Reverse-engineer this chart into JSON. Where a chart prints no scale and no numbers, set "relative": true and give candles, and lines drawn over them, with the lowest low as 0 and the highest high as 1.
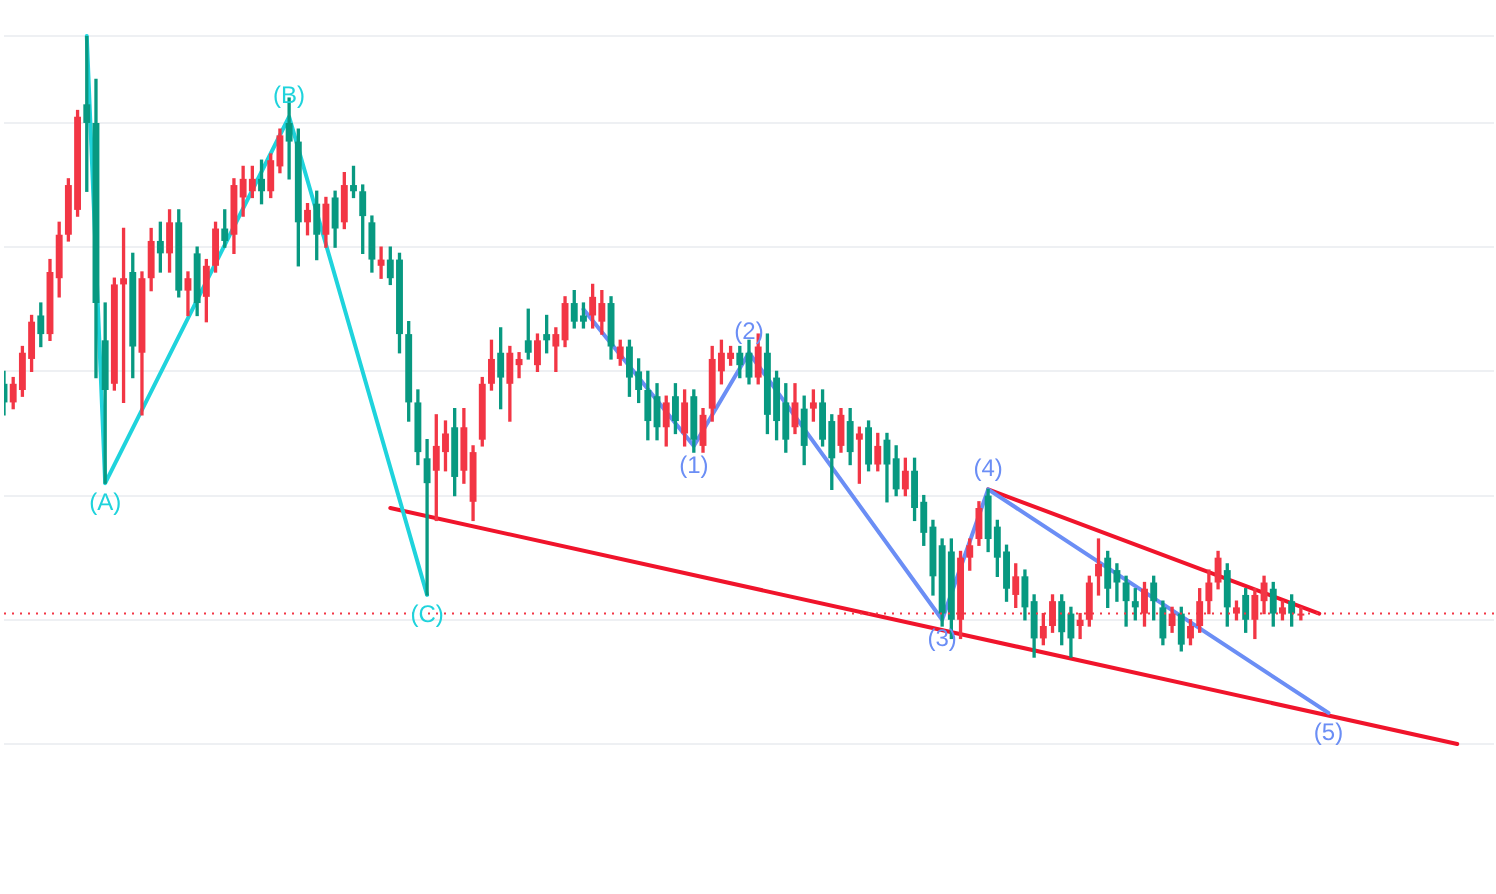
{
  "chart_data": {
    "type": "candlestick",
    "relative": true,
    "grid": "y",
    "tick_labels": false,
    "legend": false,
    "categories": [
      null,
      null,
      null,
      null,
      null,
      null,
      null,
      null,
      null,
      null,
      null,
      null,
      null,
      null,
      null,
      null,
      null,
      null,
      null,
      null,
      null,
      null,
      null,
      null,
      null,
      null,
      null,
      null,
      null,
      null,
      null,
      null,
      null,
      null,
      null,
      null,
      null,
      null,
      null,
      null,
      null,
      null,
      null,
      null,
      null,
      null,
      null,
      null,
      null,
      null,
      null,
      null,
      null,
      null,
      null,
      null,
      null,
      null,
      null,
      null,
      null,
      null,
      null,
      null,
      null,
      null,
      null,
      null,
      null,
      null,
      null,
      null,
      null,
      null,
      null,
      null,
      null,
      null,
      null,
      null,
      null,
      null,
      null,
      null,
      null,
      null,
      null,
      null,
      null,
      null,
      null,
      null,
      null,
      null,
      null,
      null,
      null,
      null,
      null,
      null,
      null,
      null,
      null,
      null,
      null,
      null,
      null,
      null,
      null,
      null,
      null,
      null,
      null,
      null,
      null,
      null,
      null,
      null,
      null,
      null,
      null,
      null,
      null,
      null,
      null,
      null,
      null,
      null,
      null,
      null,
      null,
      null,
      null,
      null,
      null,
      null,
      null,
      null,
      null,
      null,
      null,
      null,
      null,
      null,
      null,
      null,
      null,
      null,
      null,
      null,
      null,
      null,
      null,
      null,
      null,
      null,
      null,
      null,
      null,
      null,
      null,
      null,
      null
    ],
    "ohlc": [
      [
        0.44,
        0.46,
        0.39,
        0.41
      ],
      [
        0.41,
        0.45,
        0.4,
        0.44
      ],
      [
        0.43,
        0.5,
        0.42,
        0.49
      ],
      [
        0.48,
        0.55,
        0.46,
        0.54
      ],
      [
        0.55,
        0.57,
        0.5,
        0.52
      ],
      [
        0.52,
        0.64,
        0.51,
        0.62
      ],
      [
        0.61,
        0.7,
        0.58,
        0.68
      ],
      [
        0.68,
        0.77,
        0.67,
        0.76
      ],
      [
        0.72,
        0.88,
        0.71,
        0.87
      ],
      [
        0.89,
        1.0,
        0.75,
        0.86
      ],
      [
        0.86,
        0.93,
        0.45,
        0.57
      ],
      [
        0.51,
        0.57,
        0.28,
        0.43
      ],
      [
        0.44,
        0.61,
        0.43,
        0.6
      ],
      [
        0.6,
        0.69,
        0.41,
        0.61
      ],
      [
        0.62,
        0.65,
        0.45,
        0.5
      ],
      [
        0.49,
        0.62,
        0.39,
        0.61
      ],
      [
        0.61,
        0.69,
        0.59,
        0.67
      ],
      [
        0.67,
        0.7,
        0.62,
        0.65
      ],
      [
        0.65,
        0.72,
        0.62,
        0.7
      ],
      [
        0.7,
        0.72,
        0.58,
        0.59
      ],
      [
        0.59,
        0.62,
        0.55,
        0.61
      ],
      [
        0.65,
        0.66,
        0.55,
        0.57
      ],
      [
        0.58,
        0.64,
        0.54,
        0.63
      ],
      [
        0.63,
        0.7,
        0.62,
        0.69
      ],
      [
        0.69,
        0.72,
        0.66,
        0.67
      ],
      [
        0.68,
        0.77,
        0.65,
        0.76
      ],
      [
        0.74,
        0.79,
        0.71,
        0.77
      ],
      [
        0.75,
        0.79,
        0.74,
        0.77
      ],
      [
        0.77,
        0.8,
        0.73,
        0.75
      ],
      [
        0.75,
        0.81,
        0.74,
        0.8
      ],
      [
        0.79,
        0.85,
        0.78,
        0.84
      ],
      [
        0.86,
        0.9,
        0.77,
        0.83
      ],
      [
        0.83,
        0.85,
        0.63,
        0.7
      ],
      [
        0.7,
        0.73,
        0.68,
        0.72
      ],
      [
        0.73,
        0.75,
        0.64,
        0.68
      ],
      [
        0.68,
        0.74,
        0.66,
        0.73
      ],
      [
        0.74,
        0.75,
        0.66,
        0.69
      ],
      [
        0.7,
        0.78,
        0.69,
        0.76
      ],
      [
        0.76,
        0.79,
        0.74,
        0.75
      ],
      [
        0.75,
        0.76,
        0.65,
        0.71
      ],
      [
        0.7,
        0.71,
        0.62,
        0.64
      ],
      [
        0.63,
        0.66,
        0.61,
        0.64
      ],
      [
        0.64,
        0.66,
        0.6,
        0.61
      ],
      [
        0.64,
        0.65,
        0.49,
        0.52
      ],
      [
        0.52,
        0.54,
        0.38,
        0.41
      ],
      [
        0.41,
        0.43,
        0.31,
        0.33
      ],
      [
        0.32,
        0.35,
        0.1,
        0.28
      ],
      [
        0.3,
        0.39,
        0.22,
        0.34
      ],
      [
        0.33,
        0.38,
        0.3,
        0.36
      ],
      [
        0.37,
        0.4,
        0.26,
        0.29
      ],
      [
        0.3,
        0.4,
        0.28,
        0.37
      ],
      [
        0.25,
        0.34,
        0.22,
        0.33
      ],
      [
        0.35,
        0.45,
        0.34,
        0.44
      ],
      [
        0.44,
        0.51,
        0.43,
        0.48
      ],
      [
        0.49,
        0.53,
        0.4,
        0.45
      ],
      [
        0.44,
        0.5,
        0.38,
        0.49
      ],
      [
        0.47,
        0.49,
        0.45,
        0.48
      ],
      [
        0.51,
        0.56,
        0.48,
        0.49
      ],
      [
        0.47,
        0.52,
        0.46,
        0.51
      ],
      [
        0.52,
        0.55,
        0.49,
        0.51
      ],
      [
        0.5,
        0.53,
        0.46,
        0.52
      ],
      [
        0.51,
        0.58,
        0.5,
        0.57
      ],
      [
        0.57,
        0.59,
        0.53,
        0.54
      ],
      [
        0.55,
        0.57,
        0.53,
        0.54
      ],
      [
        0.55,
        0.6,
        0.53,
        0.58
      ],
      [
        0.54,
        0.59,
        0.52,
        0.57
      ],
      [
        0.57,
        0.58,
        0.48,
        0.5
      ],
      [
        0.48,
        0.51,
        0.47,
        0.5
      ],
      [
        0.5,
        0.51,
        0.42,
        0.45
      ],
      [
        0.46,
        0.48,
        0.41,
        0.43
      ],
      [
        0.43,
        0.46,
        0.35,
        0.38
      ],
      [
        0.42,
        0.44,
        0.35,
        0.37
      ],
      [
        0.37,
        0.42,
        0.34,
        0.41
      ],
      [
        0.42,
        0.44,
        0.36,
        0.38
      ],
      [
        0.36,
        0.43,
        0.34,
        0.41
      ],
      [
        0.42,
        0.43,
        0.33,
        0.35
      ],
      [
        0.34,
        0.4,
        0.33,
        0.39
      ],
      [
        0.4,
        0.5,
        0.38,
        0.48
      ],
      [
        0.46,
        0.51,
        0.44,
        0.49
      ],
      [
        0.48,
        0.5,
        0.47,
        0.49
      ],
      [
        0.49,
        0.5,
        0.45,
        0.47
      ],
      [
        0.49,
        0.51,
        0.44,
        0.45
      ],
      [
        0.45,
        0.52,
        0.44,
        0.5
      ],
      [
        0.49,
        0.52,
        0.36,
        0.39
      ],
      [
        0.45,
        0.46,
        0.35,
        0.38
      ],
      [
        0.41,
        0.44,
        0.33,
        0.35
      ],
      [
        0.37,
        0.44,
        0.36,
        0.41
      ],
      [
        0.4,
        0.42,
        0.31,
        0.34
      ],
      [
        0.4,
        0.43,
        0.38,
        0.41
      ],
      [
        0.41,
        0.43,
        0.34,
        0.35
      ],
      [
        0.38,
        0.39,
        0.27,
        0.32
      ],
      [
        0.34,
        0.4,
        0.33,
        0.39
      ],
      [
        0.38,
        0.4,
        0.31,
        0.33
      ],
      [
        0.35,
        0.37,
        0.28,
        0.36
      ],
      [
        0.37,
        0.38,
        0.3,
        0.31
      ],
      [
        0.31,
        0.36,
        0.3,
        0.34
      ],
      [
        0.35,
        0.36,
        0.25,
        0.31
      ],
      [
        0.32,
        0.34,
        0.26,
        0.27
      ],
      [
        0.27,
        0.32,
        0.26,
        0.3
      ],
      [
        0.3,
        0.32,
        0.22,
        0.24
      ],
      [
        0.25,
        0.26,
        0.18,
        0.2
      ],
      [
        0.21,
        0.22,
        0.1,
        0.13
      ],
      [
        0.18,
        0.19,
        0.05,
        0.07
      ],
      [
        0.17,
        0.19,
        0.03,
        0.06
      ],
      [
        0.06,
        0.17,
        0.03,
        0.16
      ],
      [
        0.16,
        0.19,
        0.14,
        0.18
      ],
      [
        0.19,
        0.25,
        0.18,
        0.24
      ],
      [
        0.26,
        0.27,
        0.17,
        0.19
      ],
      [
        0.21,
        0.22,
        0.13,
        0.16
      ],
      [
        0.17,
        0.18,
        0.09,
        0.11
      ],
      [
        0.1,
        0.15,
        0.08,
        0.13
      ],
      [
        0.13,
        0.14,
        0.06,
        0.08
      ],
      [
        0.09,
        0.1,
        0.0,
        0.03
      ],
      [
        0.03,
        0.07,
        0.02,
        0.05
      ],
      [
        0.05,
        0.1,
        0.04,
        0.09
      ],
      [
        0.09,
        0.1,
        0.02,
        0.04
      ],
      [
        0.07,
        0.08,
        0.0,
        0.03
      ],
      [
        0.05,
        0.07,
        0.03,
        0.06
      ],
      [
        0.06,
        0.13,
        0.05,
        0.12
      ],
      [
        0.13,
        0.19,
        0.1,
        0.15
      ],
      [
        0.16,
        0.17,
        0.08,
        0.11
      ],
      [
        0.14,
        0.15,
        0.09,
        0.12
      ],
      [
        0.12,
        0.13,
        0.05,
        0.09
      ],
      [
        0.09,
        0.11,
        0.06,
        0.08
      ],
      [
        0.07,
        0.12,
        0.05,
        0.11
      ],
      [
        0.12,
        0.13,
        0.06,
        0.09
      ],
      [
        0.08,
        0.09,
        0.02,
        0.03
      ],
      [
        0.05,
        0.08,
        0.04,
        0.07
      ],
      [
        0.07,
        0.08,
        0.01,
        0.02
      ],
      [
        0.03,
        0.06,
        0.02,
        0.05
      ],
      [
        0.05,
        0.11,
        0.04,
        0.09
      ],
      [
        0.09,
        0.14,
        0.07,
        0.12
      ],
      [
        0.12,
        0.17,
        0.11,
        0.16
      ],
      [
        0.14,
        0.15,
        0.05,
        0.08
      ],
      [
        0.07,
        0.09,
        0.06,
        0.08
      ],
      [
        0.1,
        0.11,
        0.04,
        0.06
      ],
      [
        0.06,
        0.11,
        0.03,
        0.1
      ],
      [
        0.09,
        0.13,
        0.07,
        0.12
      ],
      [
        0.11,
        0.12,
        0.05,
        0.07
      ],
      [
        0.07,
        0.09,
        0.06,
        0.08
      ],
      [
        0.09,
        0.1,
        0.05,
        0.07
      ],
      [
        0.07,
        0.08,
        0.06,
        0.07
      ],
      null,
      null,
      null,
      null,
      null,
      null,
      null,
      null,
      null,
      null,
      null,
      null,
      null,
      null,
      null,
      null,
      null,
      null,
      null,
      null,
      null
    ],
    "colors": [
      "#089981",
      "#f23645",
      "#f23645",
      "#f23645",
      "#089981",
      "#f23645",
      "#f23645",
      "#f23645",
      "#f23645",
      "#089981",
      "#089981",
      "#089981",
      "#f23645",
      "#f23645",
      "#089981",
      "#f23645",
      "#f23645",
      "#089981",
      "#f23645",
      "#089981",
      "#f23645",
      "#089981",
      "#f23645",
      "#f23645",
      "#089981",
      "#f23645",
      "#f23645",
      "#f23645",
      "#089981",
      "#f23645",
      "#f23645",
      "#089981",
      "#089981",
      "#f23645",
      "#089981",
      "#f23645",
      "#089981",
      "#f23645",
      "#089981",
      "#089981",
      "#089981",
      "#f23645",
      "#089981",
      "#089981",
      "#089981",
      "#089981",
      "#089981",
      "#f23645",
      "#f23645",
      "#089981",
      "#f23645",
      "#f23645",
      "#f23645",
      "#f23645",
      "#089981",
      "#f23645",
      "#f23645",
      "#089981",
      "#f23645",
      "#089981",
      "#f23645",
      "#f23645",
      "#089981",
      "#089981",
      "#f23645",
      "#f23645",
      "#089981",
      "#f23645",
      "#089981",
      "#089981",
      "#089981",
      "#089981",
      "#f23645",
      "#089981",
      "#f23645",
      "#089981",
      "#f23645",
      "#f23645",
      "#f23645",
      "#f23645",
      "#089981",
      "#089981",
      "#f23645",
      "#089981",
      "#089981",
      "#089981",
      "#f23645",
      "#089981",
      "#f23645",
      "#089981",
      "#089981",
      "#f23645",
      "#089981",
      "#f23645",
      "#089981",
      "#f23645",
      "#089981",
      "#089981",
      "#f23645",
      "#089981",
      "#089981",
      "#089981",
      "#089981",
      "#089981",
      "#f23645",
      "#f23645",
      "#f23645",
      "#089981",
      "#089981",
      "#089981",
      "#f23645",
      "#089981",
      "#089981",
      "#f23645",
      "#f23645",
      "#089981",
      "#089981",
      "#f23645",
      "#f23645",
      "#f23645",
      "#089981",
      "#089981",
      "#089981",
      "#089981",
      "#f23645",
      "#089981",
      "#089981",
      "#f23645",
      "#089981",
      "#f23645",
      "#f23645",
      "#f23645",
      "#f23645",
      "#089981",
      "#f23645",
      "#089981",
      "#f23645",
      "#f23645",
      "#089981",
      "#f23645",
      "#089981",
      "#f23645",
      null,
      null,
      null,
      null,
      null,
      null,
      null,
      null,
      null,
      null,
      null,
      null,
      null,
      null,
      null,
      null,
      null,
      null,
      null,
      null,
      null
    ],
    "series": [
      {
        "type": "line",
        "color": "#1fd3dc",
        "values": [
          null,
          null,
          null,
          null,
          null,
          null,
          null,
          null,
          null,
          1.0,
          null,
          0.28,
          null,
          null,
          null,
          null,
          null,
          null,
          null,
          null,
          null,
          null,
          null,
          null,
          null,
          null,
          null,
          null,
          null,
          null,
          null,
          0.87,
          null,
          null,
          null,
          null,
          null,
          null,
          null,
          null,
          null,
          null,
          null,
          null,
          null,
          null,
          0.1,
          null,
          null,
          null,
          null,
          null,
          null,
          null,
          null,
          null,
          null,
          null,
          null,
          null,
          null,
          null,
          null,
          null,
          null,
          null,
          null,
          null,
          null,
          null,
          null,
          null,
          null,
          null,
          null,
          null,
          null,
          null,
          null,
          null,
          null,
          null,
          null,
          null,
          null,
          null,
          null,
          null,
          null,
          null,
          null,
          null,
          null,
          null,
          null,
          null,
          null,
          null,
          null,
          null,
          null,
          null,
          null,
          null,
          null,
          null,
          null,
          null,
          null,
          null,
          null,
          null,
          null,
          null,
          null,
          null,
          null,
          null,
          null,
          null,
          null,
          null,
          null,
          null,
          null,
          null,
          null,
          null,
          null,
          null,
          null,
          null,
          null,
          null,
          null,
          null,
          null,
          null,
          null,
          null,
          null,
          null,
          null,
          null,
          null,
          null,
          null,
          null,
          null,
          null,
          null,
          null,
          null,
          null,
          null,
          null,
          null,
          null,
          null,
          null,
          null,
          null,
          null
        ]
      },
      {
        "type": "line",
        "color": "#6b8ef5",
        "values": [
          null,
          null,
          null,
          null,
          null,
          null,
          null,
          null,
          null,
          null,
          null,
          null,
          null,
          null,
          null,
          null,
          null,
          null,
          null,
          null,
          null,
          null,
          null,
          null,
          null,
          null,
          null,
          null,
          null,
          null,
          null,
          null,
          null,
          null,
          null,
          null,
          null,
          null,
          null,
          null,
          null,
          null,
          null,
          null,
          null,
          null,
          null,
          null,
          null,
          null,
          null,
          null,
          null,
          null,
          null,
          null,
          null,
          null,
          null,
          null,
          null,
          null,
          null,
          0.56,
          null,
          null,
          null,
          null,
          null,
          null,
          null,
          null,
          null,
          null,
          null,
          0.34,
          null,
          null,
          null,
          null,
          null,
          0.49,
          null,
          null,
          null,
          null,
          null,
          null,
          null,
          null,
          null,
          null,
          null,
          null,
          null,
          null,
          null,
          null,
          null,
          null,
          null,
          null,
          0.06,
          null,
          null,
          null,
          null,
          0.27,
          null,
          null,
          null,
          null,
          null,
          null,
          null,
          null,
          null,
          null,
          null,
          null,
          null,
          null,
          null,
          null,
          null,
          null,
          null,
          null,
          null,
          null,
          null,
          null,
          null,
          null,
          null,
          null,
          null,
          null,
          null,
          null,
          null,
          null,
          null,
          null,
          -0.09,
          null,
          null,
          null,
          null,
          null,
          null,
          null,
          null,
          null,
          null,
          null,
          null,
          null,
          null,
          null,
          null,
          null,
          null
        ]
      },
      {
        "type": "line",
        "color": "#f0142b",
        "values": [
          null,
          null,
          null,
          null,
          null,
          null,
          null,
          null,
          null,
          null,
          null,
          null,
          null,
          null,
          null,
          null,
          null,
          null,
          null,
          null,
          null,
          null,
          null,
          null,
          null,
          null,
          null,
          null,
          null,
          null,
          null,
          null,
          null,
          null,
          null,
          null,
          null,
          null,
          null,
          null,
          null,
          null,
          0.24,
          null,
          null,
          null,
          null,
          null,
          null,
          null,
          null,
          null,
          null,
          null,
          null,
          null,
          null,
          null,
          null,
          null,
          null,
          null,
          null,
          null,
          null,
          null,
          null,
          null,
          null,
          null,
          null,
          null,
          null,
          null,
          null,
          null,
          null,
          null,
          null,
          null,
          null,
          null,
          null,
          null,
          null,
          null,
          null,
          null,
          null,
          null,
          null,
          null,
          null,
          null,
          null,
          null,
          null,
          null,
          null,
          null,
          null,
          null,
          null,
          null,
          null,
          null,
          null,
          null,
          null,
          null,
          null,
          null,
          null,
          null,
          null,
          null,
          null,
          null,
          null,
          null,
          null,
          null,
          null,
          null,
          null,
          null,
          null,
          null,
          null,
          null,
          null,
          null,
          null,
          null,
          null,
          null,
          null,
          null,
          null,
          null,
          null,
          null,
          null,
          null,
          null,
          null,
          null,
          null,
          null,
          null,
          null,
          null,
          null,
          null,
          null,
          null,
          null,
          null,
          -0.14,
          null,
          null,
          null,
          null
        ]
      },
      {
        "type": "line",
        "color": "#f0142b",
        "values": [
          null,
          null,
          null,
          null,
          null,
          null,
          null,
          null,
          null,
          null,
          null,
          null,
          null,
          null,
          null,
          null,
          null,
          null,
          null,
          null,
          null,
          null,
          null,
          null,
          null,
          null,
          null,
          null,
          null,
          null,
          null,
          null,
          null,
          null,
          null,
          null,
          null,
          null,
          null,
          null,
          null,
          null,
          null,
          null,
          null,
          null,
          null,
          null,
          null,
          null,
          null,
          null,
          null,
          null,
          null,
          null,
          null,
          null,
          null,
          null,
          null,
          null,
          null,
          null,
          null,
          null,
          null,
          null,
          null,
          null,
          null,
          null,
          null,
          null,
          null,
          null,
          null,
          null,
          null,
          null,
          null,
          null,
          null,
          null,
          null,
          null,
          null,
          null,
          null,
          null,
          null,
          null,
          null,
          null,
          null,
          null,
          null,
          null,
          null,
          null,
          null,
          null,
          null,
          null,
          null,
          null,
          null,
          0.27,
          null,
          null,
          null,
          null,
          null,
          null,
          null,
          null,
          null,
          null,
          null,
          null,
          null,
          null,
          null,
          null,
          null,
          null,
          null,
          null,
          null,
          null,
          null,
          null,
          null,
          null,
          null,
          null,
          null,
          null,
          null,
          null,
          null,
          null,
          null,
          0.07,
          null,
          null,
          null,
          null,
          null,
          null,
          null,
          null,
          null,
          null,
          null,
          null,
          null,
          null,
          null,
          null,
          null,
          null,
          null
        ]
      }
    ],
    "annotations": [
      {
        "text": "(A)",
        "y": 0.28
      },
      {
        "text": "(B)",
        "y": 0.87
      },
      {
        "text": "(C)",
        "y": 0.1
      },
      {
        "text": "(1)",
        "y": 0.34
      },
      {
        "text": "(2)",
        "y": 0.49
      },
      {
        "text": "(3)",
        "y": 0.06
      },
      {
        "text": "(4)",
        "y": 0.27
      },
      {
        "text": "(5)",
        "y": -0.09
      }
    ],
    "ref_lines": [
      {
        "axis": "y",
        "value": 0.07,
        "color": "#f23645",
        "line_style": "dotted"
      }
    ]
  }
}
